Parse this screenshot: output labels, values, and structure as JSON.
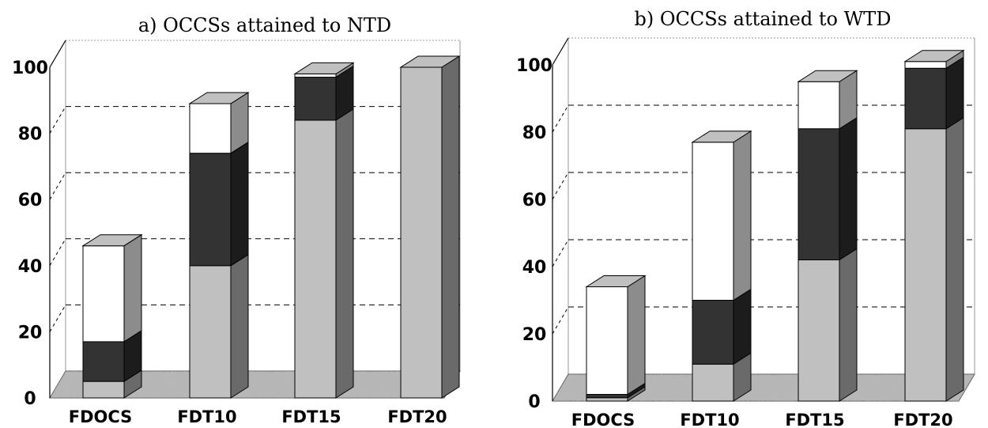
{
  "chart_data": [
    {
      "type": "bar",
      "stacked": true,
      "style": "3d",
      "title": "a) OCCSs attained to NTD",
      "categories": [
        "FDOCS",
        "FDT10",
        "FDT15",
        "FDT20"
      ],
      "yticks": [
        "0",
        "20",
        "40",
        "60",
        "80",
        "100"
      ],
      "ylim": [
        0,
        100
      ],
      "grid": "dashed",
      "series": [
        {
          "color": "#c0c0c0",
          "values": [
            5,
            40,
            84,
            100
          ]
        },
        {
          "color": "#333333",
          "values": [
            12,
            34,
            13,
            0
          ]
        },
        {
          "color": "#ffffff",
          "values": [
            29,
            15,
            1,
            0
          ]
        }
      ]
    },
    {
      "type": "bar",
      "stacked": true,
      "style": "3d",
      "title": "b) OCCSs attained to WTD",
      "categories": [
        "FDOCS",
        "FDT10",
        "FDT15",
        "FDT20"
      ],
      "yticks": [
        "0",
        "20",
        "40",
        "60",
        "80",
        "100"
      ],
      "ylim": [
        0,
        100
      ],
      "grid": "dashed",
      "series": [
        {
          "color": "#c0c0c0",
          "values": [
            1,
            11,
            42,
            81
          ]
        },
        {
          "color": "#333333",
          "values": [
            1,
            19,
            39,
            18
          ]
        },
        {
          "color": "#ffffff",
          "values": [
            32,
            47,
            14,
            2
          ]
        }
      ]
    }
  ]
}
